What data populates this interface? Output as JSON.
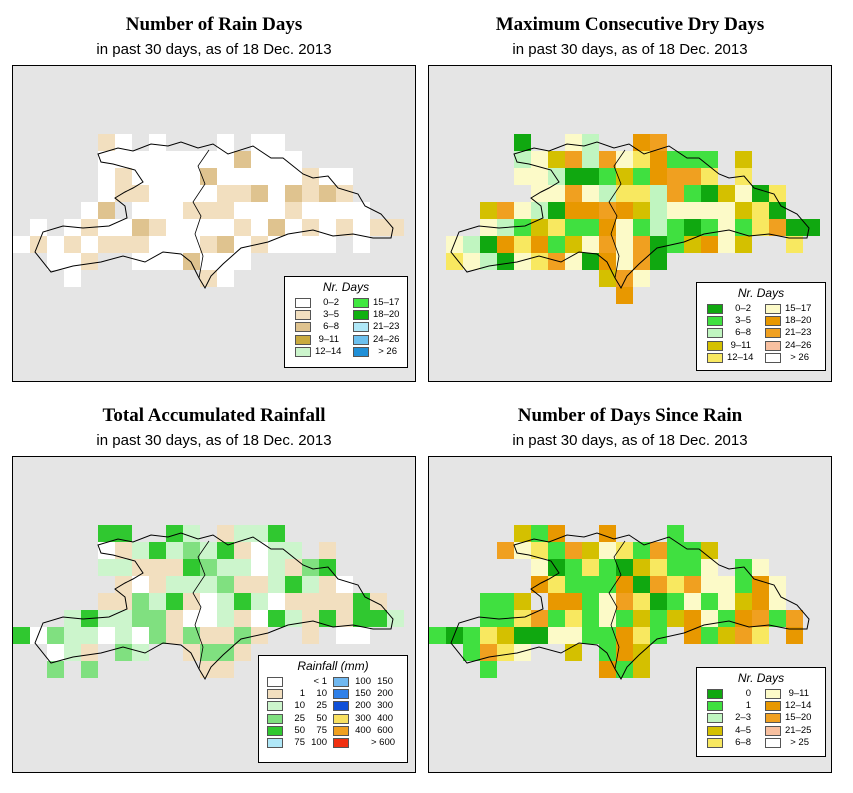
{
  "panels": [
    {
      "title": "Number of Rain Days",
      "subtitle": "in past 30 days, as of  18 Dec. 2013",
      "legend": {
        "title": "Nr. Days",
        "items": [
          {
            "label": "0–2",
            "color": "#ffffff"
          },
          {
            "label": "3–5",
            "color": "#f2dfbf"
          },
          {
            "label": "6–8",
            "color": "#dfc38f"
          },
          {
            "label": "9–11",
            "color": "#c9aa3f"
          },
          {
            "label": "12–14",
            "color": "#ccf5cc"
          },
          {
            "label": "15–17",
            "color": "#40e840"
          },
          {
            "label": "18–20",
            "color": "#10b010"
          },
          {
            "label": "21–23",
            "color": "#b0e8f8"
          },
          {
            "label": "24–26",
            "color": "#6cc0ee"
          },
          {
            "label": "> 26",
            "color": "#2090d8"
          }
        ]
      }
    },
    {
      "title": "Maximum Consecutive Dry Days",
      "subtitle": "in past 30 days, as of  18 Dec. 2013",
      "legend": {
        "title": "Nr. Days",
        "items": [
          {
            "label": "0–2",
            "color": "#10a810"
          },
          {
            "label": "3–5",
            "color": "#40e040"
          },
          {
            "label": "6–8",
            "color": "#c0f5c0"
          },
          {
            "label": "9–11",
            "color": "#d4c000"
          },
          {
            "label": "12–14",
            "color": "#f8e860"
          },
          {
            "label": "15–17",
            "color": "#fcfac8"
          },
          {
            "label": "18–20",
            "color": "#e89800"
          },
          {
            "label": "21–23",
            "color": "#f0a020"
          },
          {
            "label": "24–26",
            "color": "#f8c0a0"
          },
          {
            "label": "> 26",
            "color": "#ffffff"
          }
        ]
      }
    },
    {
      "title": "Total Accumulated Rainfall",
      "subtitle": "in past 30 days, as of  18 Dec. 2013",
      "legend": {
        "title": "Rainfall (mm)",
        "items": [
          {
            "lo": "",
            "hi": "< 1",
            "color": "#ffffff"
          },
          {
            "lo": "1",
            "hi": "10",
            "color": "#f2dfbf"
          },
          {
            "lo": "10",
            "hi": "25",
            "color": "#ccf5cc"
          },
          {
            "lo": "25",
            "hi": "50",
            "color": "#80e080"
          },
          {
            "lo": "50",
            "hi": "75",
            "color": "#30c830"
          },
          {
            "lo": "75",
            "hi": "100",
            "color": "#b0e8f8"
          },
          {
            "lo": "100",
            "hi": "150",
            "color": "#70b8f0"
          },
          {
            "lo": "150",
            "hi": "200",
            "color": "#3080e8"
          },
          {
            "lo": "200",
            "hi": "300",
            "color": "#1050d8"
          },
          {
            "lo": "300",
            "hi": "400",
            "color": "#f8e060"
          },
          {
            "lo": "400",
            "hi": "600",
            "color": "#f0a020"
          },
          {
            "lo": "",
            "hi": "> 600",
            "color": "#f03010"
          }
        ]
      }
    },
    {
      "title": "Number of Days Since Rain",
      "subtitle": "in past 30 days, as of  18 Dec. 2013",
      "legend": {
        "title": "Nr. Days",
        "items": [
          {
            "label": "0",
            "color": "#10a810"
          },
          {
            "label": "1",
            "color": "#40e040"
          },
          {
            "label": "2–3",
            "color": "#c0f5c0"
          },
          {
            "label": "4–5",
            "color": "#d4c000"
          },
          {
            "label": "6–8",
            "color": "#f8e860"
          },
          {
            "label": "9–11",
            "color": "#fcfac8"
          },
          {
            "label": "12–14",
            "color": "#e89800"
          },
          {
            "label": "15–20",
            "color": "#f0a020"
          },
          {
            "label": "21–25",
            "color": "#f8c0a0"
          },
          {
            "label": "> 25",
            "color": "#ffffff"
          }
        ]
      }
    }
  ]
}
